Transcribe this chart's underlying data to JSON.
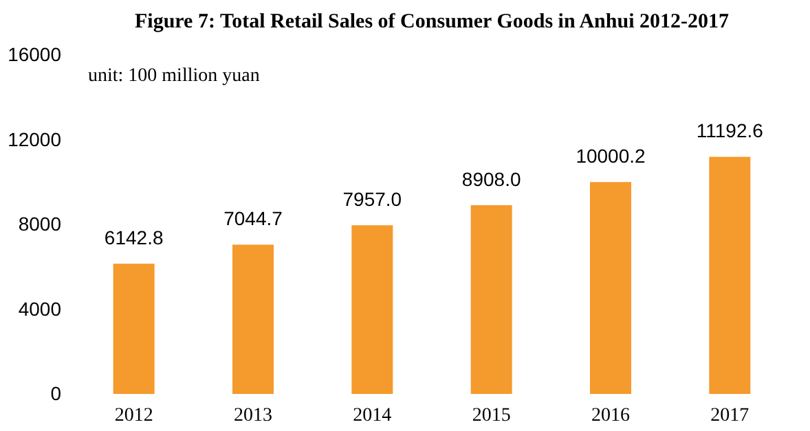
{
  "chart_data": {
    "type": "bar",
    "title": "Figure 7: Total Retail Sales of Consumer Goods in Anhui 2012-2017",
    "annotations": [
      "unit: 100 million yuan"
    ],
    "categories": [
      "2012",
      "2013",
      "2014",
      "2015",
      "2016",
      "2017"
    ],
    "values": [
      6142.8,
      7044.7,
      7957.0,
      8908.0,
      10000.2,
      11192.6
    ],
    "value_labels": [
      "6142.8",
      "7044.7",
      "7957.0",
      "8908.0",
      "10000.2",
      "11192.6"
    ],
    "color": "#f59a2c",
    "ylim": [
      0,
      16000
    ],
    "yticks": [
      0,
      4000,
      8000,
      12000,
      16000
    ],
    "grid": false
  }
}
